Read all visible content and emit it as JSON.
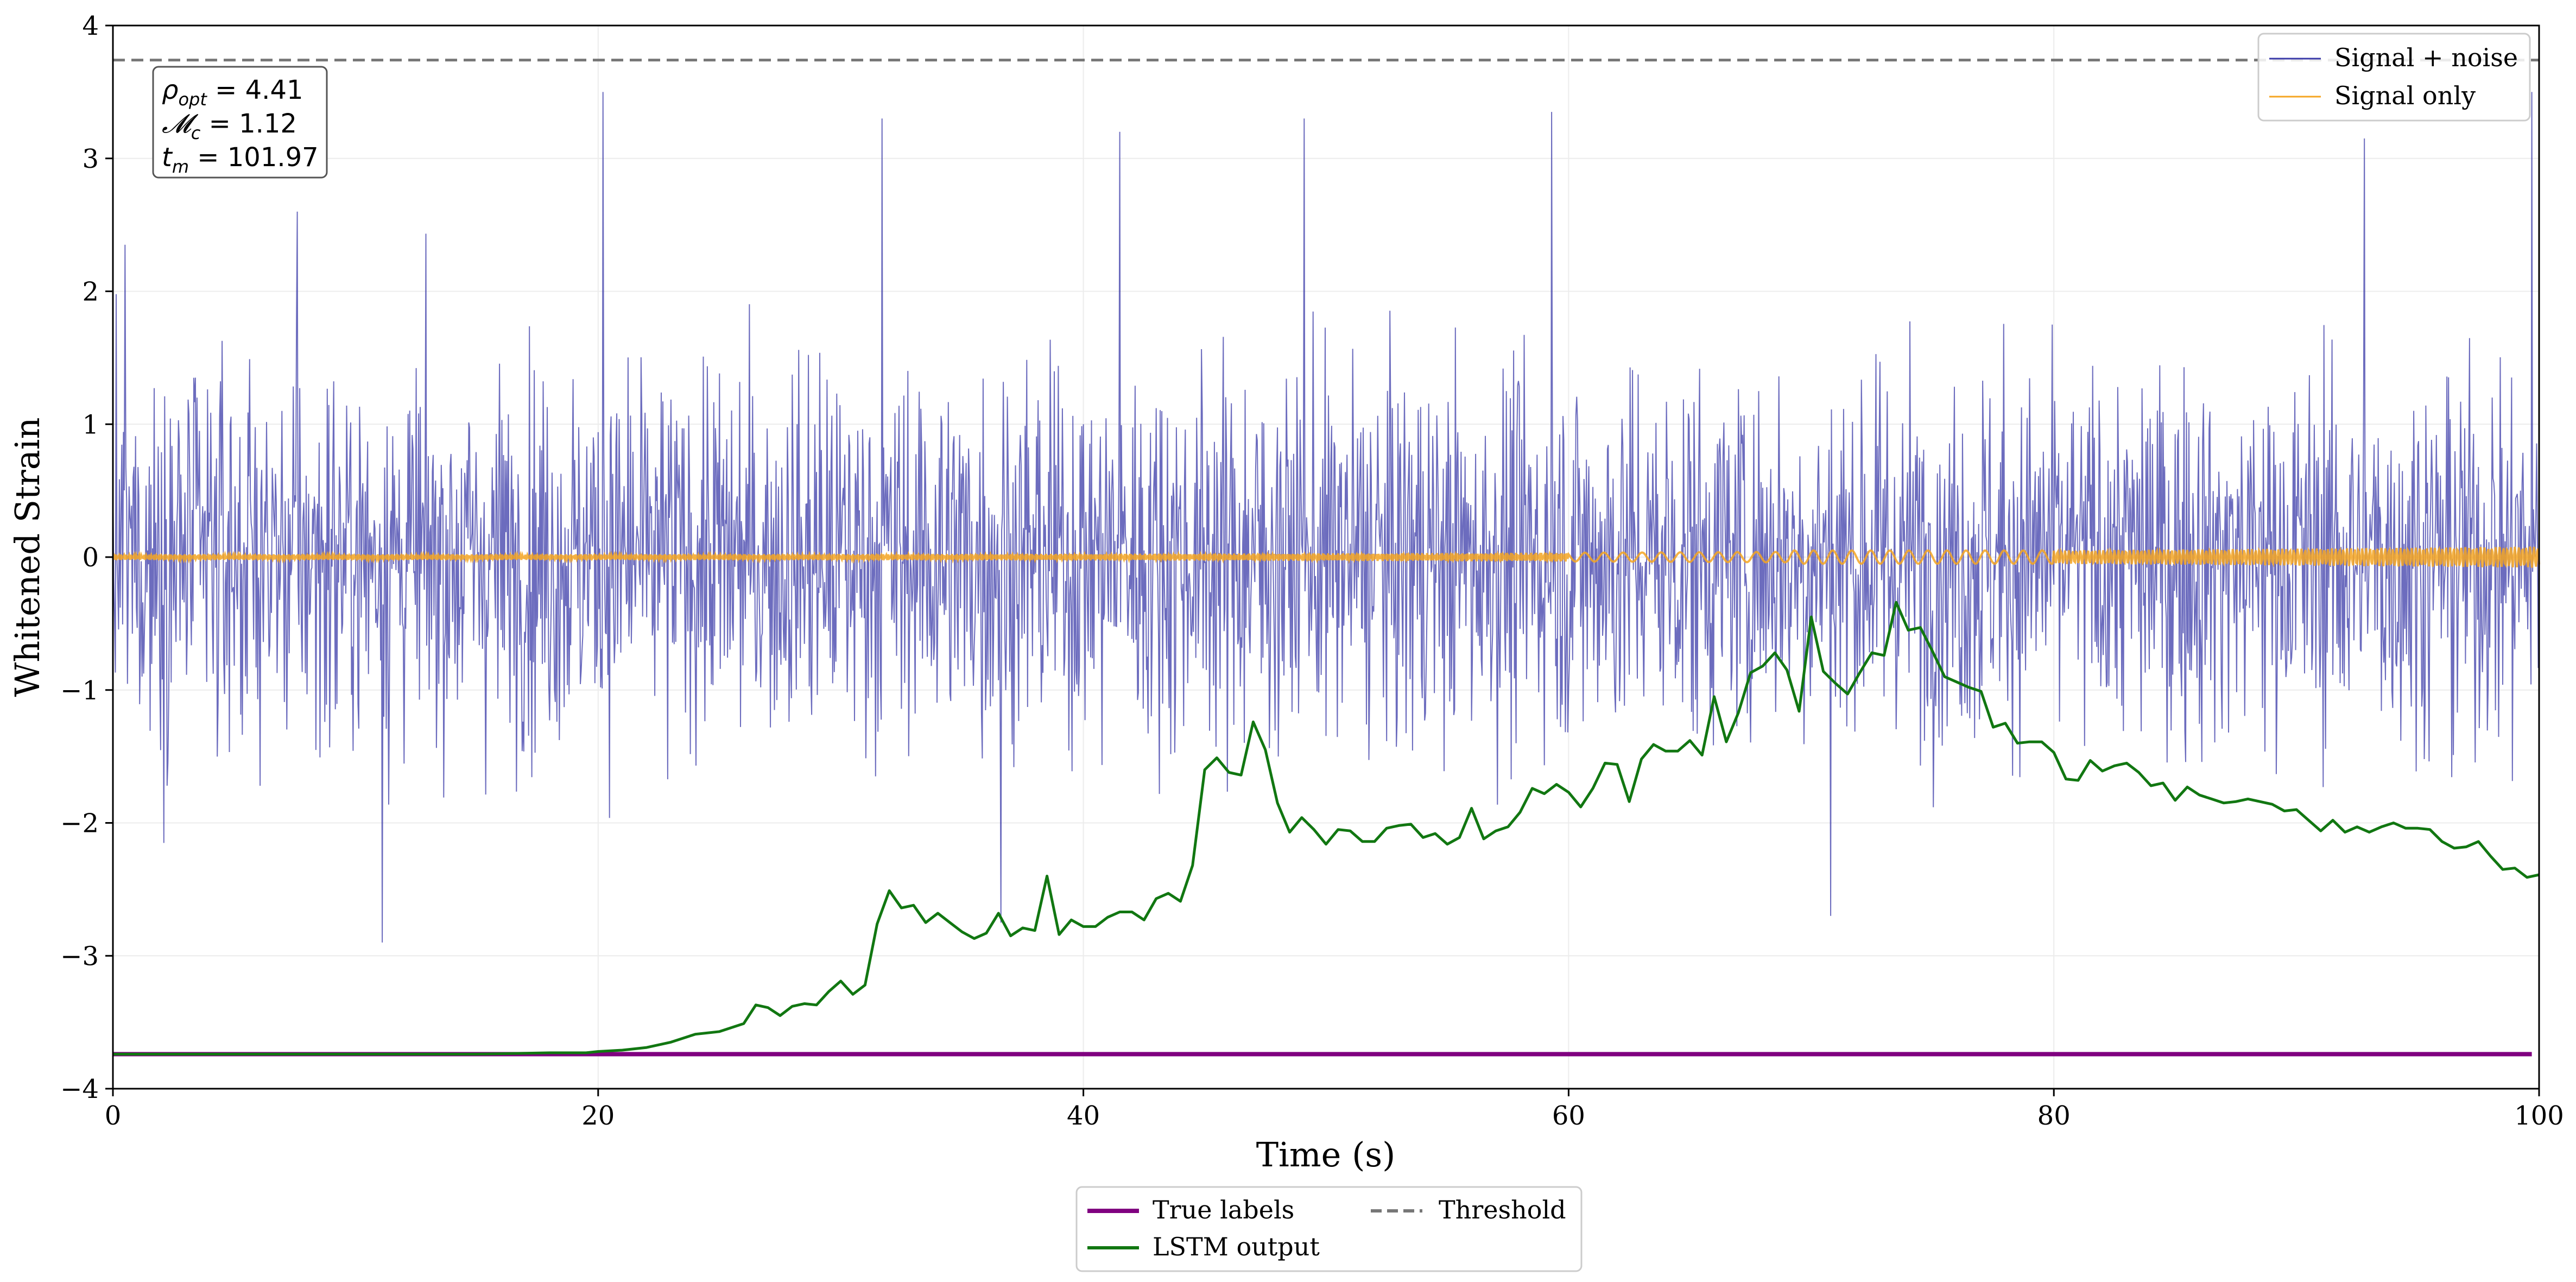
{
  "chart_data": {
    "type": "line",
    "title": "",
    "xlabel": "Time (s)",
    "ylabel": "Whitened Strain",
    "xlim": [
      0,
      100
    ],
    "ylim": [
      -4,
      4
    ],
    "xticks": [
      0,
      20,
      40,
      60,
      80,
      100
    ],
    "yticks": [
      -4,
      -3,
      -2,
      -1,
      0,
      1,
      2,
      3,
      4
    ],
    "grid": true,
    "annotation": {
      "lines": [
        {
          "symbol": "ρ",
          "sub": "opt",
          "eq": " = 4.41"
        },
        {
          "symbol": "𝓜",
          "sub": "c",
          "eq": " = 1.12"
        },
        {
          "symbol": "t",
          "sub": "m",
          "eq": " = 101.97"
        }
      ],
      "placement": "top-left"
    },
    "legend_top": {
      "placement": "top-right",
      "entries": [
        {
          "label": "Signal + noise",
          "color": "#3b3ba8"
        },
        {
          "label": "Signal only",
          "color": "#f5a623"
        }
      ]
    },
    "legend_bottom": {
      "placement": "below-axes",
      "entries": [
        {
          "label": "True labels",
          "color": "#800080",
          "style": "solid"
        },
        {
          "label": "LSTM output",
          "color": "#117711",
          "style": "solid"
        },
        {
          "label": "Threshold",
          "color": "#777777",
          "style": "dashed"
        }
      ]
    },
    "series": [
      {
        "name": "Signal + noise",
        "color": "#3b3ba8",
        "note_visual": "dense noise, roughly -2.9 to 3.5 around 0",
        "sample_points": [
          [
            0.5,
            2.35
          ],
          [
            7.6,
            2.6
          ],
          [
            11.1,
            -2.9
          ],
          [
            20.2,
            3.5
          ],
          [
            31.7,
            3.3
          ],
          [
            36.6,
            -2.75
          ],
          [
            41.5,
            3.2
          ],
          [
            49.1,
            3.3
          ],
          [
            59.3,
            3.35
          ],
          [
            70.8,
            -2.7
          ],
          [
            92.8,
            3.15
          ],
          [
            99.7,
            3.5
          ]
        ]
      },
      {
        "name": "Signal only",
        "color": "#f5a623",
        "note_visual": "near-zero chirp, amplitude grows toward the end",
        "points": [
          [
            0,
            0
          ],
          [
            20,
            0.01
          ],
          [
            40,
            0.02
          ],
          [
            60,
            0.03
          ],
          [
            69,
            0.05
          ],
          [
            73,
            -0.05
          ],
          [
            76,
            0.05
          ],
          [
            80,
            -0.06
          ],
          [
            90,
            0.08
          ],
          [
            100,
            0.1
          ]
        ]
      },
      {
        "name": "True labels",
        "color": "#800080",
        "points": [
          [
            0,
            -3.74
          ],
          [
            99.7,
            -3.74
          ]
        ]
      },
      {
        "name": "LSTM output",
        "color": "#117711",
        "points": [
          [
            0,
            -3.74
          ],
          [
            10,
            -3.74
          ],
          [
            15,
            -3.74
          ],
          [
            18,
            -3.73
          ],
          [
            19.5,
            -3.73
          ],
          [
            20,
            -3.72
          ],
          [
            21,
            -3.71
          ],
          [
            22,
            -3.69
          ],
          [
            23,
            -3.65
          ],
          [
            24,
            -3.59
          ],
          [
            25,
            -3.57
          ],
          [
            26,
            -3.51
          ],
          [
            26.5,
            -3.37
          ],
          [
            27,
            -3.39
          ],
          [
            27.5,
            -3.45
          ],
          [
            28,
            -3.38
          ],
          [
            28.5,
            -3.36
          ],
          [
            29,
            -3.37
          ],
          [
            29.5,
            -3.27
          ],
          [
            30,
            -3.19
          ],
          [
            30.5,
            -3.29
          ],
          [
            31,
            -3.22
          ],
          [
            31.5,
            -2.76
          ],
          [
            32,
            -2.51
          ],
          [
            32.5,
            -2.64
          ],
          [
            33,
            -2.62
          ],
          [
            33.5,
            -2.75
          ],
          [
            34,
            -2.68
          ],
          [
            34.5,
            -2.75
          ],
          [
            35,
            -2.82
          ],
          [
            35.5,
            -2.87
          ],
          [
            36,
            -2.83
          ],
          [
            36.5,
            -2.68
          ],
          [
            37,
            -2.85
          ],
          [
            37.5,
            -2.79
          ],
          [
            38,
            -2.81
          ],
          [
            38.5,
            -2.4
          ],
          [
            39,
            -2.84
          ],
          [
            39.5,
            -2.73
          ],
          [
            40,
            -2.78
          ],
          [
            40.5,
            -2.78
          ],
          [
            41,
            -2.71
          ],
          [
            41.5,
            -2.67
          ],
          [
            42,
            -2.67
          ],
          [
            42.5,
            -2.73
          ],
          [
            43,
            -2.57
          ],
          [
            43.5,
            -2.53
          ],
          [
            44,
            -2.59
          ],
          [
            44.5,
            -2.32
          ],
          [
            45,
            -1.6
          ],
          [
            45.5,
            -1.51
          ],
          [
            46,
            -1.62
          ],
          [
            46.5,
            -1.64
          ],
          [
            47,
            -1.24
          ],
          [
            47.5,
            -1.45
          ],
          [
            48,
            -1.85
          ],
          [
            48.5,
            -2.07
          ],
          [
            49,
            -1.96
          ],
          [
            49.5,
            -2.05
          ],
          [
            50,
            -2.16
          ],
          [
            50.5,
            -2.05
          ],
          [
            51,
            -2.06
          ],
          [
            51.5,
            -2.14
          ],
          [
            52,
            -2.14
          ],
          [
            52.5,
            -2.04
          ],
          [
            53,
            -2.02
          ],
          [
            53.5,
            -2.01
          ],
          [
            54,
            -2.11
          ],
          [
            54.5,
            -2.08
          ],
          [
            55,
            -2.16
          ],
          [
            55.5,
            -2.11
          ],
          [
            56,
            -1.89
          ],
          [
            56.5,
            -2.12
          ],
          [
            57,
            -2.06
          ],
          [
            57.5,
            -2.03
          ],
          [
            58,
            -1.92
          ],
          [
            58.5,
            -1.74
          ],
          [
            59,
            -1.78
          ],
          [
            59.5,
            -1.71
          ],
          [
            60,
            -1.77
          ],
          [
            60.5,
            -1.88
          ],
          [
            61,
            -1.74
          ],
          [
            61.5,
            -1.55
          ],
          [
            62,
            -1.56
          ],
          [
            62.5,
            -1.84
          ],
          [
            63,
            -1.52
          ],
          [
            63.5,
            -1.41
          ],
          [
            64,
            -1.46
          ],
          [
            64.5,
            -1.46
          ],
          [
            65,
            -1.38
          ],
          [
            65.5,
            -1.49
          ],
          [
            66,
            -1.05
          ],
          [
            66.5,
            -1.39
          ],
          [
            67,
            -1.17
          ],
          [
            67.5,
            -0.87
          ],
          [
            68,
            -0.82
          ],
          [
            68.5,
            -0.72
          ],
          [
            69,
            -0.85
          ],
          [
            69.5,
            -1.16
          ],
          [
            70,
            -0.45
          ],
          [
            70.5,
            -0.86
          ],
          [
            71,
            -0.95
          ],
          [
            71.5,
            -1.03
          ],
          [
            72,
            -0.87
          ],
          [
            72.5,
            -0.72
          ],
          [
            73,
            -0.74
          ],
          [
            73.5,
            -0.34
          ],
          [
            74,
            -0.55
          ],
          [
            74.5,
            -0.53
          ],
          [
            75,
            -0.71
          ],
          [
            75.5,
            -0.9
          ],
          [
            76,
            -0.94
          ],
          [
            76.5,
            -0.98
          ],
          [
            77,
            -1.01
          ],
          [
            77.5,
            -1.28
          ],
          [
            78,
            -1.25
          ],
          [
            78.5,
            -1.4
          ],
          [
            79,
            -1.39
          ],
          [
            79.5,
            -1.39
          ],
          [
            80,
            -1.47
          ],
          [
            80.5,
            -1.67
          ],
          [
            81,
            -1.68
          ],
          [
            81.5,
            -1.53
          ],
          [
            82,
            -1.61
          ],
          [
            82.5,
            -1.57
          ],
          [
            83,
            -1.55
          ],
          [
            83.5,
            -1.62
          ],
          [
            84,
            -1.72
          ],
          [
            84.5,
            -1.7
          ],
          [
            85,
            -1.83
          ],
          [
            85.5,
            -1.73
          ],
          [
            86,
            -1.79
          ],
          [
            86.5,
            -1.82
          ],
          [
            87,
            -1.85
          ],
          [
            87.5,
            -1.84
          ],
          [
            88,
            -1.82
          ],
          [
            88.5,
            -1.84
          ],
          [
            89,
            -1.86
          ],
          [
            89.5,
            -1.91
          ],
          [
            90,
            -1.9
          ],
          [
            90.5,
            -1.98
          ],
          [
            91,
            -2.06
          ],
          [
            91.5,
            -1.98
          ],
          [
            92,
            -2.07
          ],
          [
            92.5,
            -2.03
          ],
          [
            93,
            -2.07
          ],
          [
            93.5,
            -2.03
          ],
          [
            94,
            -2.0
          ],
          [
            94.5,
            -2.04
          ],
          [
            95,
            -2.04
          ],
          [
            95.5,
            -2.05
          ],
          [
            96,
            -2.14
          ],
          [
            96.5,
            -2.19
          ],
          [
            97,
            -2.18
          ],
          [
            97.5,
            -2.14
          ],
          [
            98,
            -2.25
          ],
          [
            98.5,
            -2.35
          ],
          [
            99,
            -2.34
          ],
          [
            99.5,
            -2.41
          ],
          [
            100,
            -2.39
          ]
        ]
      },
      {
        "name": "Threshold",
        "color": "#777777",
        "style": "dashed",
        "value": 3.74
      }
    ]
  }
}
